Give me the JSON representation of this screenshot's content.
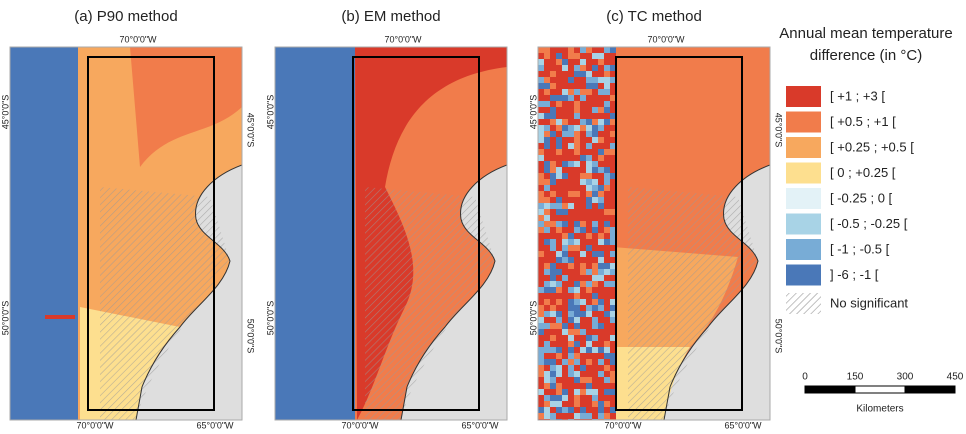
{
  "panels": [
    {
      "title": "(a) P90 method",
      "lon_top": "70°0'0\"W",
      "lon_bottom": [
        "70°0'0\"W",
        "65°0'0\"W"
      ],
      "lat_left": [
        "45°0'0\"S",
        "50°0'0\"S"
      ],
      "lat_right": [
        "45°0'0\"S",
        "50°0'0\"S"
      ]
    },
    {
      "title": "(b) EM method",
      "lon_top": "70°0'0\"W",
      "lon_bottom": [
        "70°0'0\"W",
        "65°0'0\"W"
      ],
      "lat_left": [
        "45°0'0\"S",
        "50°0'0\"S"
      ],
      "lat_right": []
    },
    {
      "title": "(c) TC method",
      "lon_top": "70°0'0\"W",
      "lon_bottom": [
        "70°0'0\"W",
        "65°0'0\"W"
      ],
      "lat_left": [
        "45°0'0\"S",
        "50°0'0\"S"
      ],
      "lat_right": [
        "45°0'0\"S",
        "50°0'0\"S"
      ]
    }
  ],
  "legend": {
    "title": [
      "Annual mean temperature",
      "difference (in °C)"
    ],
    "items": [
      {
        "label": "[ +1 ; +3 [",
        "color": "#d93a2a"
      },
      {
        "label": "[ +0.5 ; +1 [",
        "color": "#f17c4b"
      },
      {
        "label": "[ +0.25 ; +0.5 [",
        "color": "#f7a85e"
      },
      {
        "label": "[ 0 ; +0.25 [",
        "color": "#fddf8f"
      },
      {
        "label": "[ -0.25 ; 0 [",
        "color": "#e3f2f7"
      },
      {
        "label": "[ -0.5 ; -0.25 [",
        "color": "#a8d3e6"
      },
      {
        "label": "[ -1 ; -0.5 [",
        "color": "#78acd6"
      },
      {
        "label": "] -6 ; -1 [",
        "color": "#4a78b8"
      }
    ],
    "hatch_label": "No significant"
  },
  "scale": {
    "ticks": [
      0,
      150,
      300,
      450
    ],
    "unit": "Kilometers"
  }
}
